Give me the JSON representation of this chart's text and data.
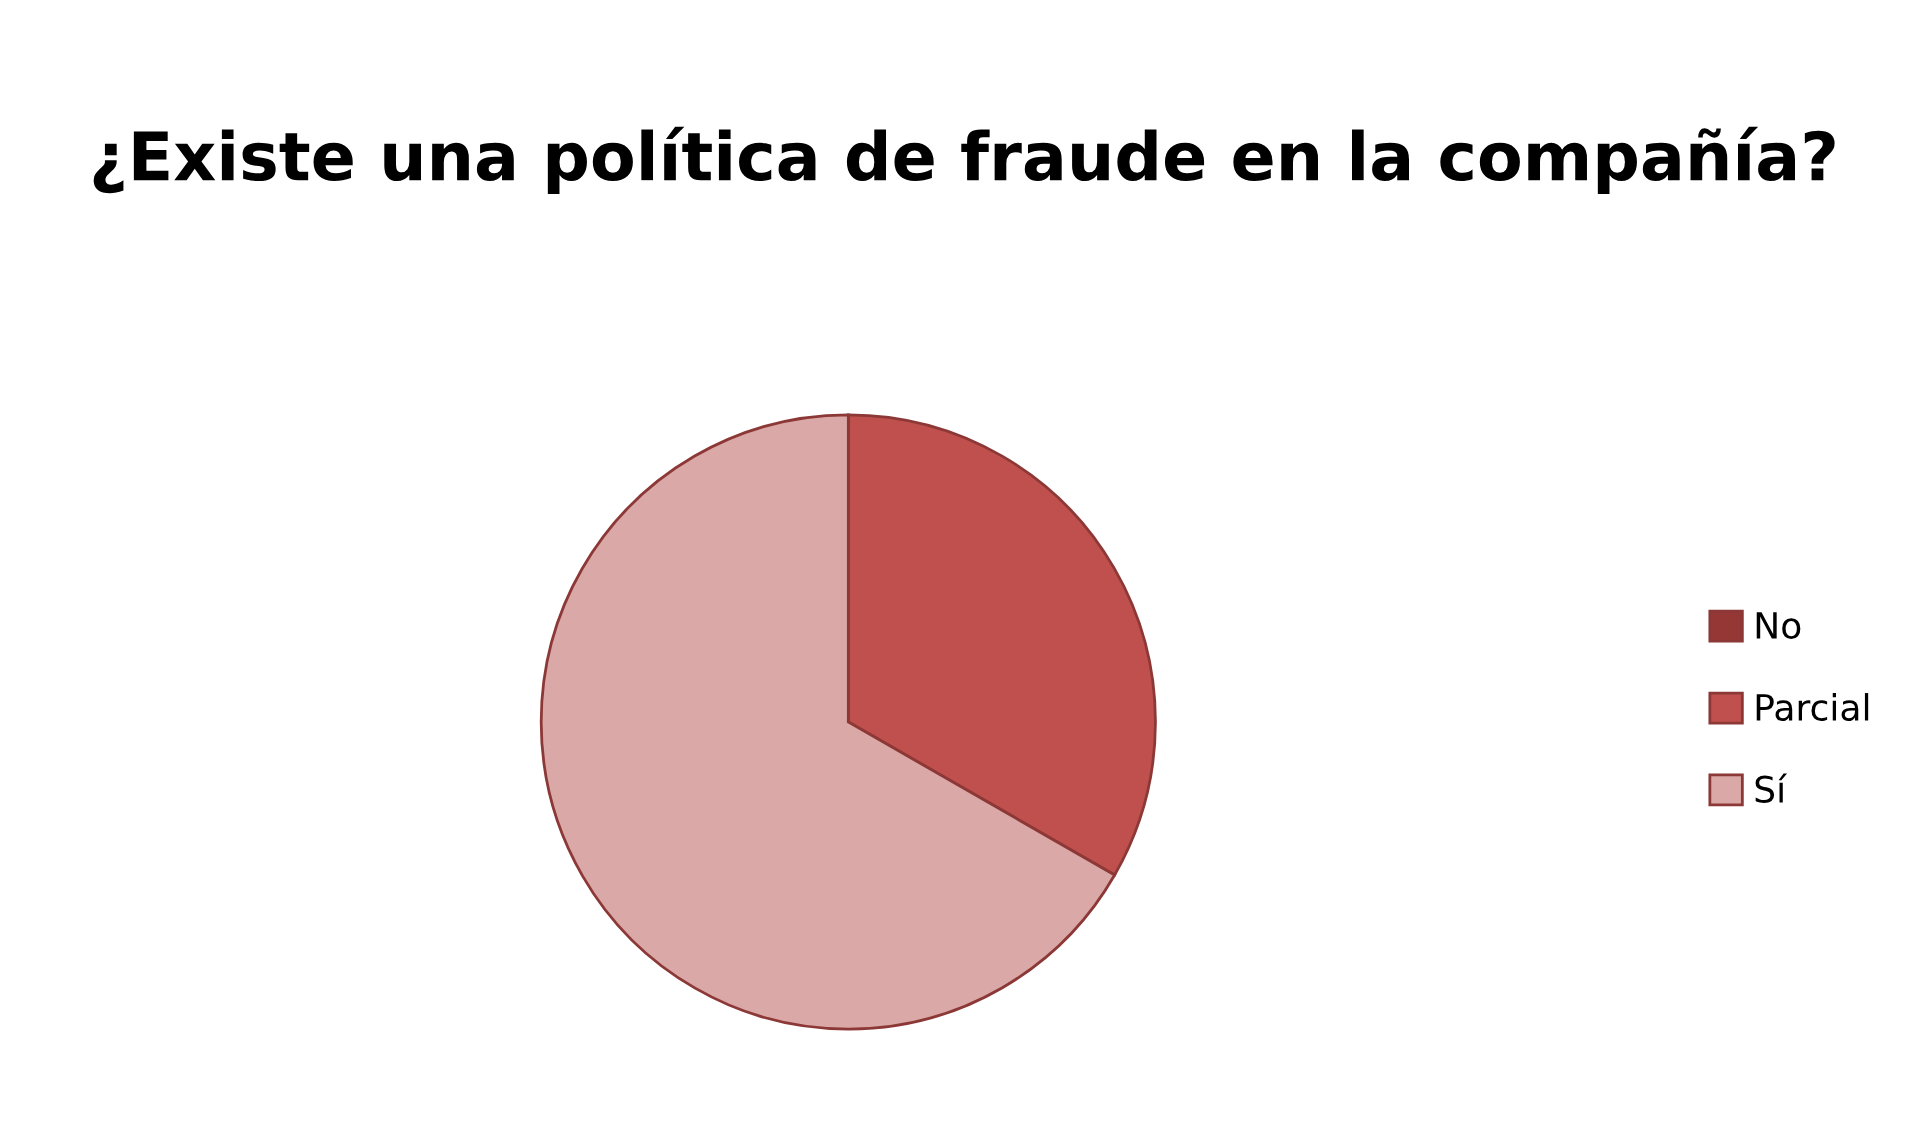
{
  "chart_data": {
    "type": "pie",
    "title": "¿Existe una política de fraude en la compañía?",
    "categories": [
      "No",
      "Parcial",
      "Sí"
    ],
    "values": [
      0,
      33.3,
      66.7
    ],
    "colors": [
      "#953735",
      "#c0504d",
      "#d9a8a7"
    ],
    "legend": "right"
  }
}
